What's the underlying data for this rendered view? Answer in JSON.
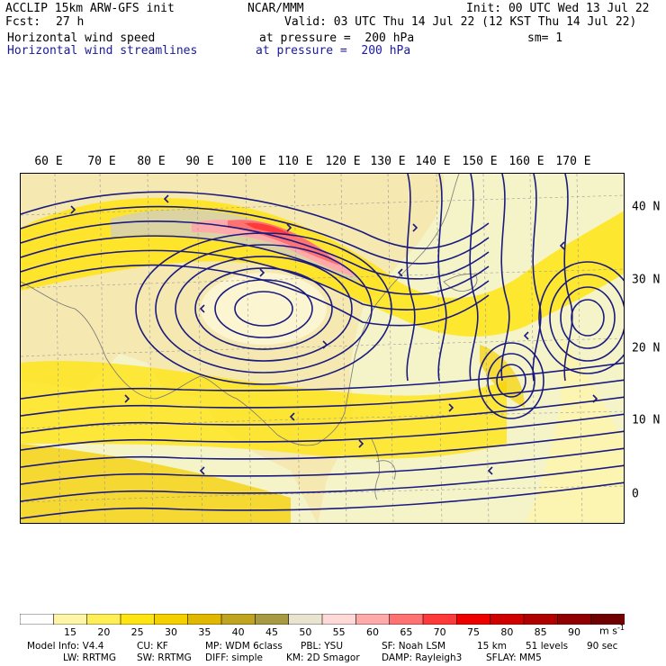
{
  "header": {
    "model": "ACCLIP 15km ARW-GFS init",
    "center": "NCAR/MMM",
    "init": "Init: 00 UTC Wed 13 Jul 22",
    "fcst_label": "Fcst:",
    "fcst_value": "27 h",
    "valid": "Valid: 03 UTC Thu 14 Jul 22 (12 KST Thu 14 Jul 22)",
    "field1": "Horizontal wind speed",
    "field1_level": "at pressure =  200 hPa",
    "sm": "sm= 1",
    "field2": "Horizontal wind streamlines",
    "field2_level": "at pressure =  200 hPa"
  },
  "map": {
    "lon_labels": [
      "60 E",
      "70 E",
      "80 E",
      "90 E",
      "100 E",
      "110 E",
      "120 E",
      "130 E",
      "140 E",
      "150 E",
      "160 E",
      "170 E"
    ],
    "lat_labels": [
      "40 N",
      "30 N",
      "20 N",
      "10 N",
      "0"
    ],
    "colors": {
      "land": "#e8dcc4",
      "ocean": "#e6f6f8",
      "streamline": "#1a1a80",
      "coast": "#777777",
      "grid": "#999999"
    }
  },
  "colorbar": {
    "levels": [
      "15",
      "20",
      "25",
      "30",
      "35",
      "40",
      "45",
      "50",
      "55",
      "60",
      "65",
      "70",
      "75",
      "80",
      "85",
      "90"
    ],
    "colors": [
      "#ffffff",
      "#fff5a8",
      "#ffee55",
      "#ffe414",
      "#f5d000",
      "#e0b800",
      "#bfa420",
      "#a89a40",
      "#e8e4d0",
      "#ffd8d8",
      "#ffaaaa",
      "#ff7272",
      "#ff3a3a",
      "#ee0000",
      "#d00000",
      "#b00000",
      "#900000",
      "#700000"
    ],
    "unit": "m s",
    "unit_exp": "-1"
  },
  "footer": {
    "line1": [
      "Model Info: V4.4",
      "CU: KF",
      "MP: WDM 6class",
      "PBL: YSU",
      "SF: Noah LSM",
      "15 km",
      "51 levels",
      "90 sec"
    ],
    "line2": [
      "LW: RRTMG",
      "SW: RRTMG",
      "DIFF: simple",
      "KM: 2D Smagor",
      "DAMP: Rayleigh3",
      "SFLAY: MM5"
    ]
  }
}
